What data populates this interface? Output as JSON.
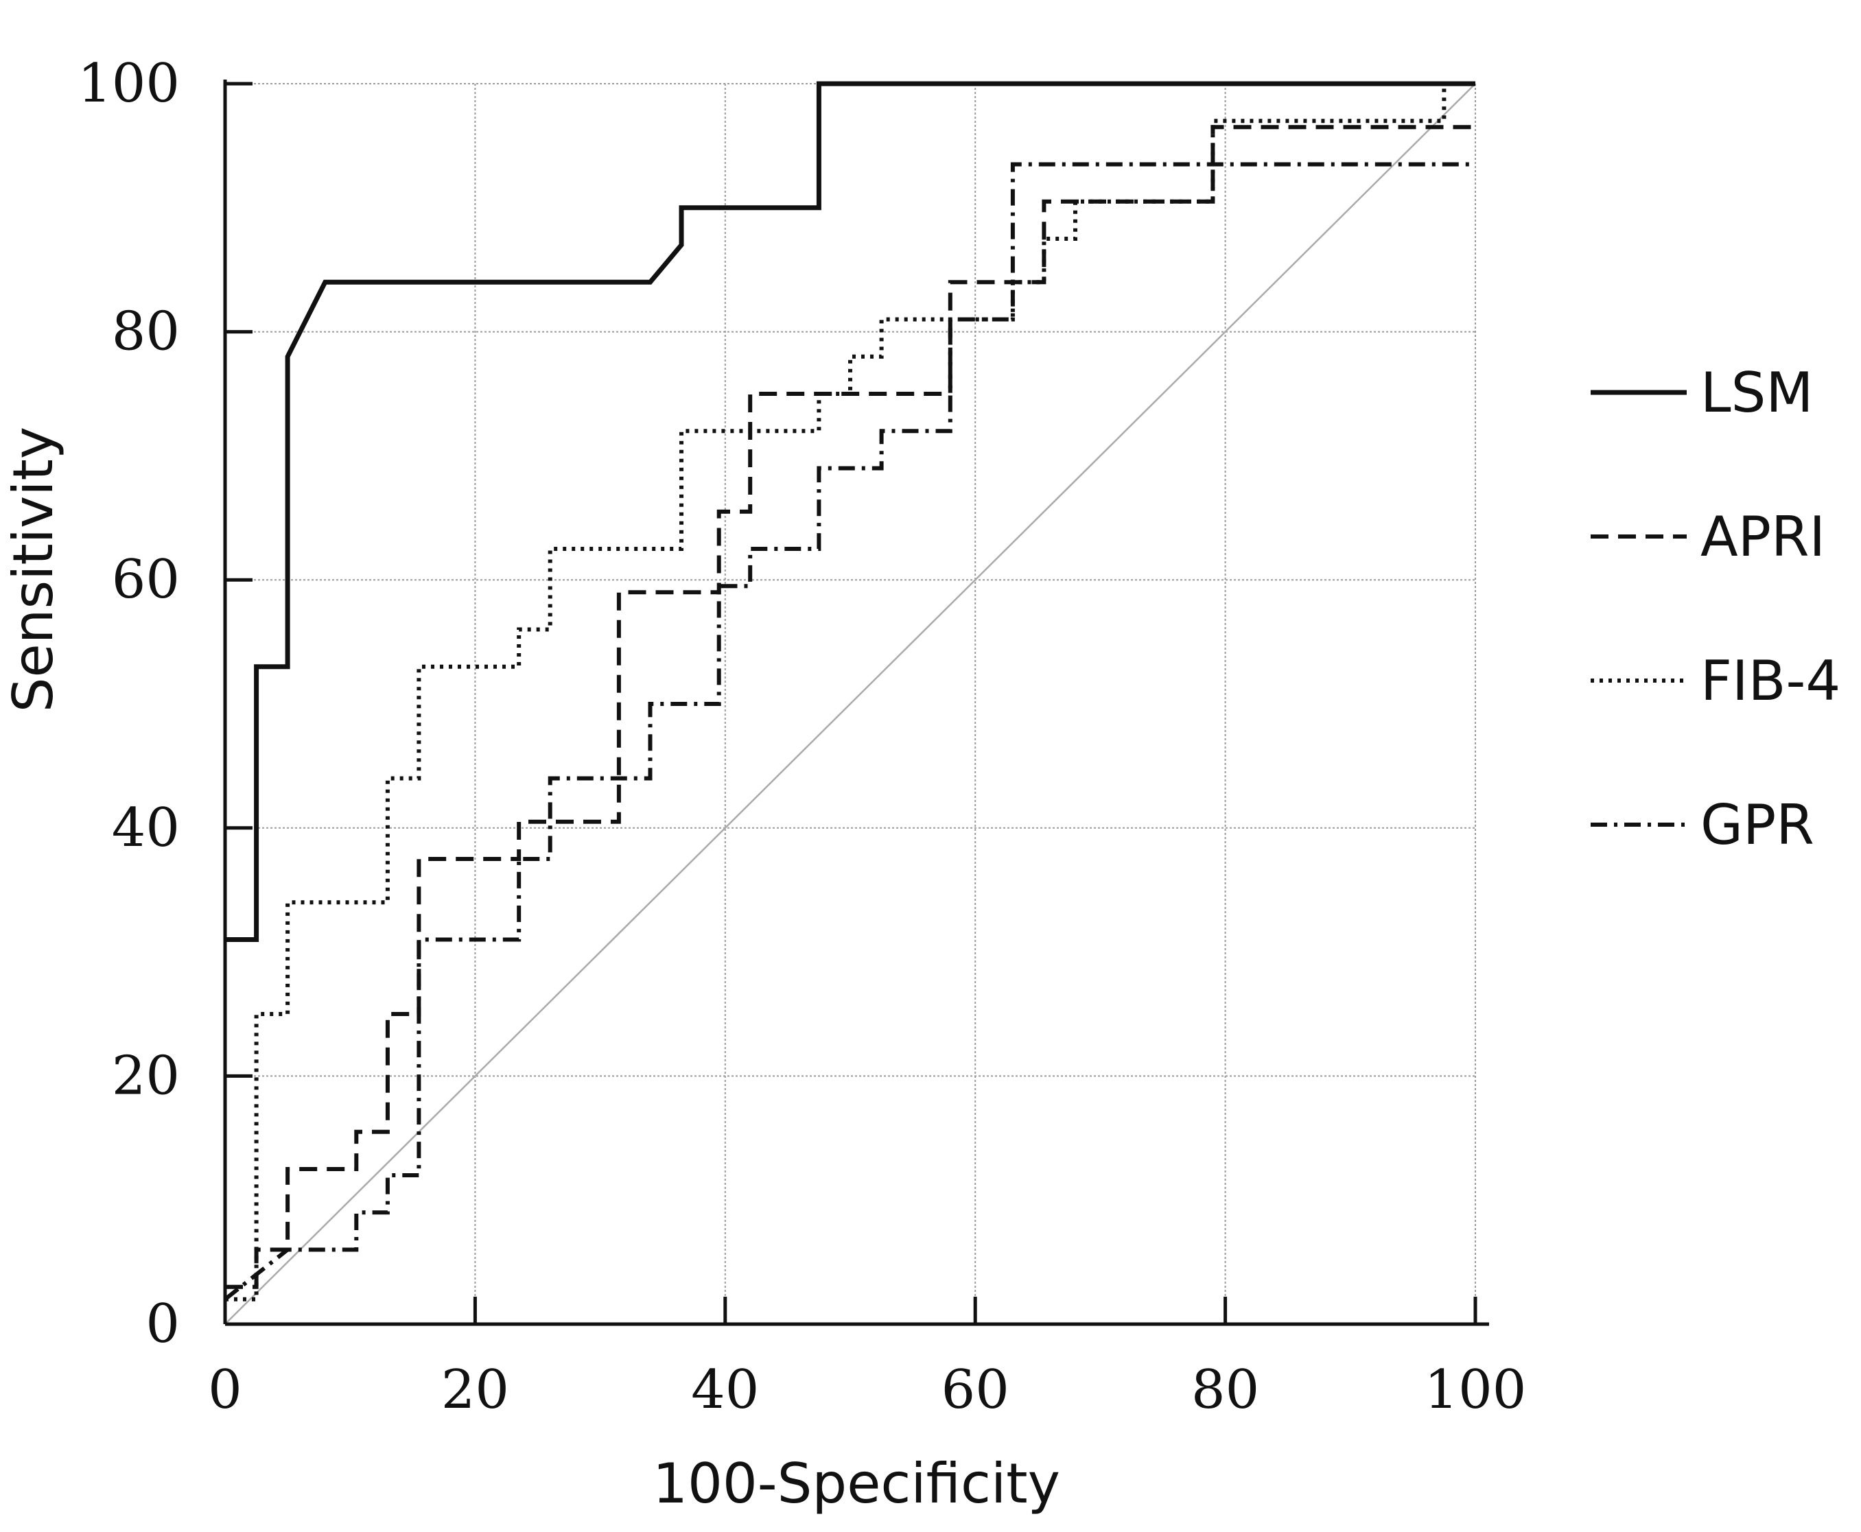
{
  "chart_data": {
    "type": "line",
    "title": "",
    "xlabel": "100-Specificity",
    "ylabel": "Sensitivity",
    "xlim": [
      0,
      100
    ],
    "ylim": [
      0,
      100
    ],
    "xticks": [
      0,
      20,
      40,
      60,
      80,
      100
    ],
    "yticks": [
      0,
      20,
      40,
      60,
      80,
      100
    ],
    "grid": true,
    "legend_position": "right",
    "reference_line": {
      "x": [
        0,
        100
      ],
      "y": [
        0,
        100
      ],
      "color": "#aaaaaa"
    },
    "series": [
      {
        "name": "LSM",
        "style": "solid",
        "color": "#111111",
        "x": [
          0,
          2.5,
          2.5,
          5,
          5,
          8,
          34,
          36.5,
          36.5,
          47.5,
          47.5,
          100
        ],
        "y": [
          31,
          31,
          53,
          53,
          78,
          84,
          84,
          87,
          90,
          90,
          100,
          100
        ]
      },
      {
        "name": "APRI",
        "style": "dashed",
        "color": "#111111",
        "x": [
          0,
          2.5,
          2.5,
          5,
          5,
          10.5,
          10.5,
          13,
          13,
          15.5,
          15.5,
          23.5,
          23.5,
          31.5,
          31.5,
          39.5,
          39.5,
          42,
          42,
          58,
          58,
          60.5,
          60.5,
          65.5,
          65.5,
          79,
          79,
          100
        ],
        "y": [
          3,
          3,
          6,
          6,
          12.5,
          12.5,
          15.5,
          15.5,
          25,
          25,
          37.5,
          37.5,
          40.5,
          40.5,
          59,
          59,
          65.5,
          65.5,
          75,
          75,
          84,
          84,
          84,
          84,
          90.5,
          90.5,
          96.5,
          96.5
        ]
      },
      {
        "name": "FIB-4",
        "style": "dotted",
        "color": "#111111",
        "x": [
          0,
          2.5,
          2.5,
          5,
          5,
          13,
          13,
          15.5,
          15.5,
          23.5,
          23.5,
          26,
          26,
          36.5,
          36.5,
          47.5,
          47.5,
          50,
          50,
          52.5,
          52.5,
          63,
          63,
          65.5,
          65.5,
          68,
          68,
          79,
          79,
          97.5,
          97.5,
          100
        ],
        "y": [
          2,
          2,
          25,
          25,
          34,
          34,
          44,
          44,
          53,
          53,
          56,
          56,
          62.5,
          62.5,
          72,
          72,
          75,
          75,
          78,
          78,
          81,
          81,
          84,
          84,
          87.5,
          87.5,
          90.5,
          90.5,
          97,
          97,
          100,
          100
        ]
      },
      {
        "name": "GPR",
        "style": "dashdot",
        "color": "#111111",
        "x": [
          0,
          5,
          5,
          10.5,
          10.5,
          13,
          13,
          15.5,
          15.5,
          23.5,
          23.5,
          26,
          26,
          34,
          34,
          39.5,
          39.5,
          42,
          42,
          47.5,
          47.5,
          52.5,
          52.5,
          58,
          58,
          60.5,
          60.5,
          63,
          63,
          68,
          68,
          81.5,
          81.5,
          100
        ],
        "y": [
          2,
          6,
          6,
          6,
          9,
          9,
          12,
          12,
          31,
          31,
          37.5,
          37.5,
          44,
          44,
          50,
          50,
          59.5,
          59.5,
          62.5,
          62.5,
          69,
          69,
          72,
          72,
          81,
          81,
          81,
          81,
          93.5,
          93.5,
          93.5,
          93.5,
          93.5,
          93.5
        ]
      }
    ]
  }
}
